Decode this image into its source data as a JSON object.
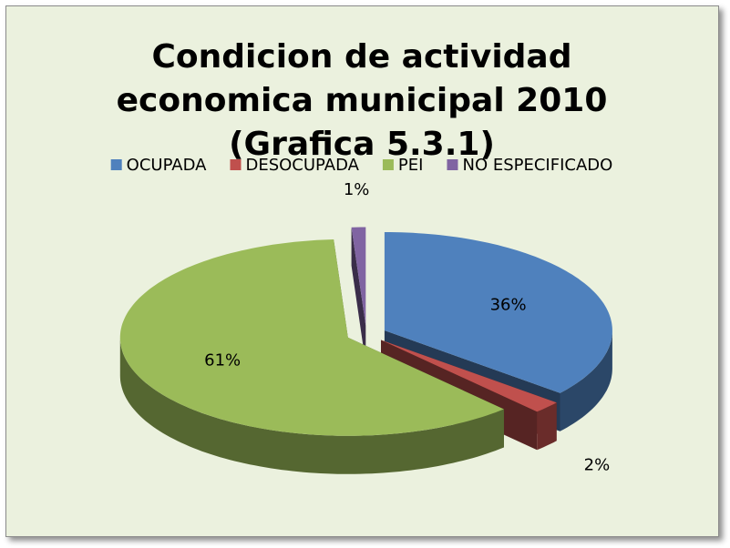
{
  "chart_data": {
    "type": "pie",
    "title": "Condicion de actividad economica municipal 2010 (Grafica 5.3.1)",
    "categories": [
      "OCUPADA",
      "DESOCUPADA",
      "PEI",
      "NO ESPECIFICADO"
    ],
    "values": [
      36,
      2,
      61,
      1
    ],
    "value_labels": [
      "36%",
      "2%",
      "61%",
      "1%"
    ],
    "colors": [
      "#4f81bd",
      "#c0504d",
      "#9bbb59",
      "#8064a2"
    ],
    "legend": "top"
  }
}
